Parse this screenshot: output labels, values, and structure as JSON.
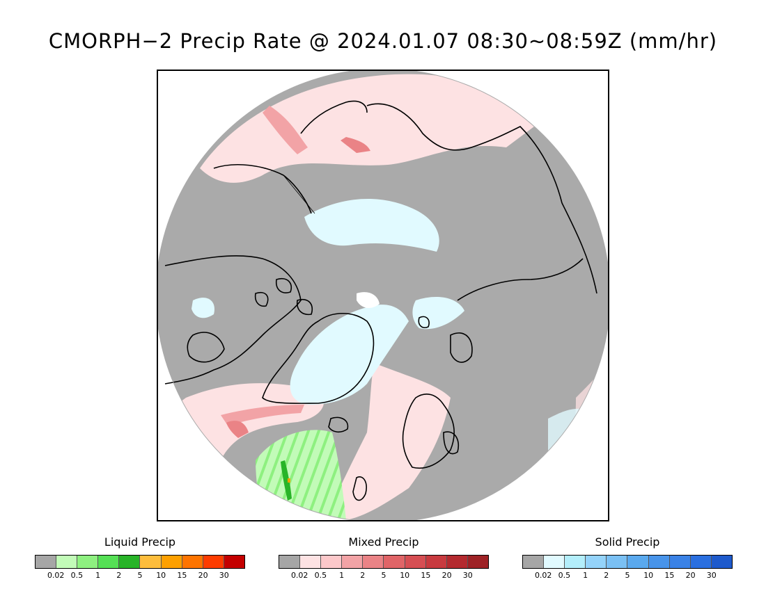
{
  "title": "CMORPH−2 Precip Rate @ 2024.01.07 08:30~08:59Z (mm/hr)",
  "map": {
    "projection": "north-polar-stereographic",
    "background_color": "#aaaaaa",
    "coastline_color": "#000000"
  },
  "legends": [
    {
      "title": "Liquid Precip",
      "colors": [
        "#a6a6a6",
        "#c2fbb8",
        "#8ef080",
        "#55e055",
        "#28b428",
        "#fdbd3c",
        "#fea000",
        "#fe7400",
        "#fe3c00",
        "#c40000"
      ],
      "ticks": [
        "0.02",
        "0.5",
        "1",
        "2",
        "5",
        "10",
        "15",
        "20",
        "30"
      ]
    },
    {
      "title": "Mixed Precip",
      "colors": [
        "#a6a6a6",
        "#fde2e3",
        "#fcc8ca",
        "#f2a3a6",
        "#ea8386",
        "#e06467",
        "#d64e53",
        "#c83a3f",
        "#b42a2f",
        "#9e2226"
      ],
      "ticks": [
        "0.02",
        "0.5",
        "1",
        "2",
        "5",
        "10",
        "15",
        "20",
        "30"
      ]
    },
    {
      "title": "Solid Precip",
      "colors": [
        "#a6a6a6",
        "#e1faff",
        "#b3eefb",
        "#94d3fa",
        "#7ac0f4",
        "#5aa9ee",
        "#4894ea",
        "#3a82e6",
        "#2a6fe0",
        "#1e5acc"
      ],
      "ticks": [
        "0.02",
        "0.5",
        "1",
        "2",
        "5",
        "10",
        "15",
        "20",
        "30"
      ]
    }
  ]
}
